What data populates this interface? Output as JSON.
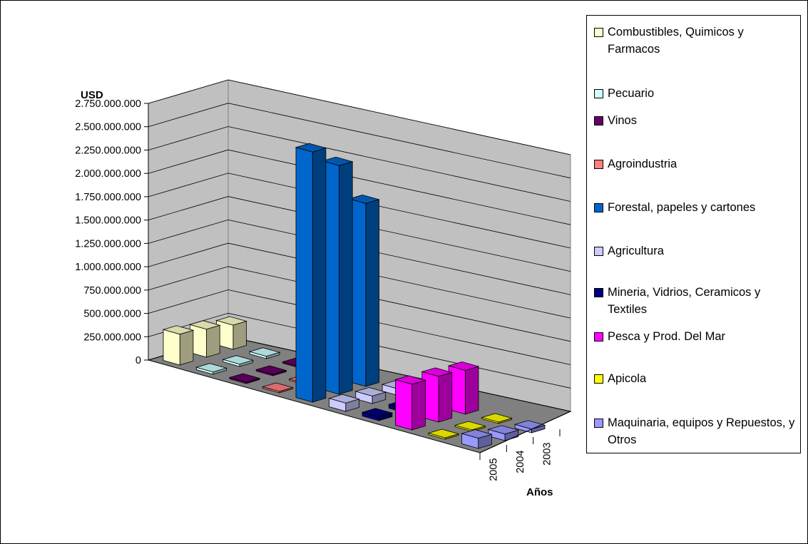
{
  "chart_data": {
    "type": "bar",
    "subtype": "3d-grouped-bar",
    "title": "",
    "ylabel": "USD",
    "xlabel": "Años",
    "ylim": [
      0,
      2750000000
    ],
    "yticks": [
      "0",
      "250.000.000",
      "500.000.000",
      "750.000.000",
      "1.000.000.000",
      "1.250.000.000",
      "1.500.000.000",
      "1.750.000.000",
      "2.000.000.000",
      "2.250.000.000",
      "2.500.000.000",
      "2.750.000.000"
    ],
    "ytick_values": [
      0,
      250000000,
      500000000,
      750000000,
      1000000000,
      1250000000,
      1500000000,
      1750000000,
      2000000000,
      2250000000,
      2500000000,
      2750000000
    ],
    "categories": [
      "2005",
      "2004",
      "2003"
    ],
    "grid": true,
    "legend_position": "right",
    "series": [
      {
        "name": "Combustibles, Quimicos y Farmacos",
        "color": "#ffffcc",
        "values": [
          330000000,
          300000000,
          260000000
        ]
      },
      {
        "name": "Pecuario",
        "color": "#ccffff",
        "values": [
          25000000,
          25000000,
          25000000
        ]
      },
      {
        "name": "Vinos",
        "color": "#660066",
        "values": [
          10000000,
          10000000,
          10000000
        ]
      },
      {
        "name": "Agroindustria",
        "color": "#ff8080",
        "values": [
          10000000,
          10000000,
          10000000
        ]
      },
      {
        "name": "Forestal, papeles y cartones",
        "color": "#0066cc",
        "values": [
          2680000000,
          2450000000,
          1960000000
        ]
      },
      {
        "name": "Agricultura",
        "color": "#ccccff",
        "values": [
          90000000,
          80000000,
          70000000
        ]
      },
      {
        "name": "Mineria, Vidrios, Ceramicos y Textiles",
        "color": "#000080",
        "values": [
          40000000,
          40000000,
          40000000
        ]
      },
      {
        "name": "Pesca y Prod. Del Mar",
        "color": "#ff00ff",
        "values": [
          490000000,
          490000000,
          470000000
        ]
      },
      {
        "name": "Apicola",
        "color": "#ffff00",
        "values": [
          5000000,
          5000000,
          5000000
        ]
      },
      {
        "name": "Maquinaria, equipos y Repuestos, y Otros",
        "color": "#9999ff",
        "values": [
          110000000,
          70000000,
          40000000
        ]
      }
    ]
  }
}
